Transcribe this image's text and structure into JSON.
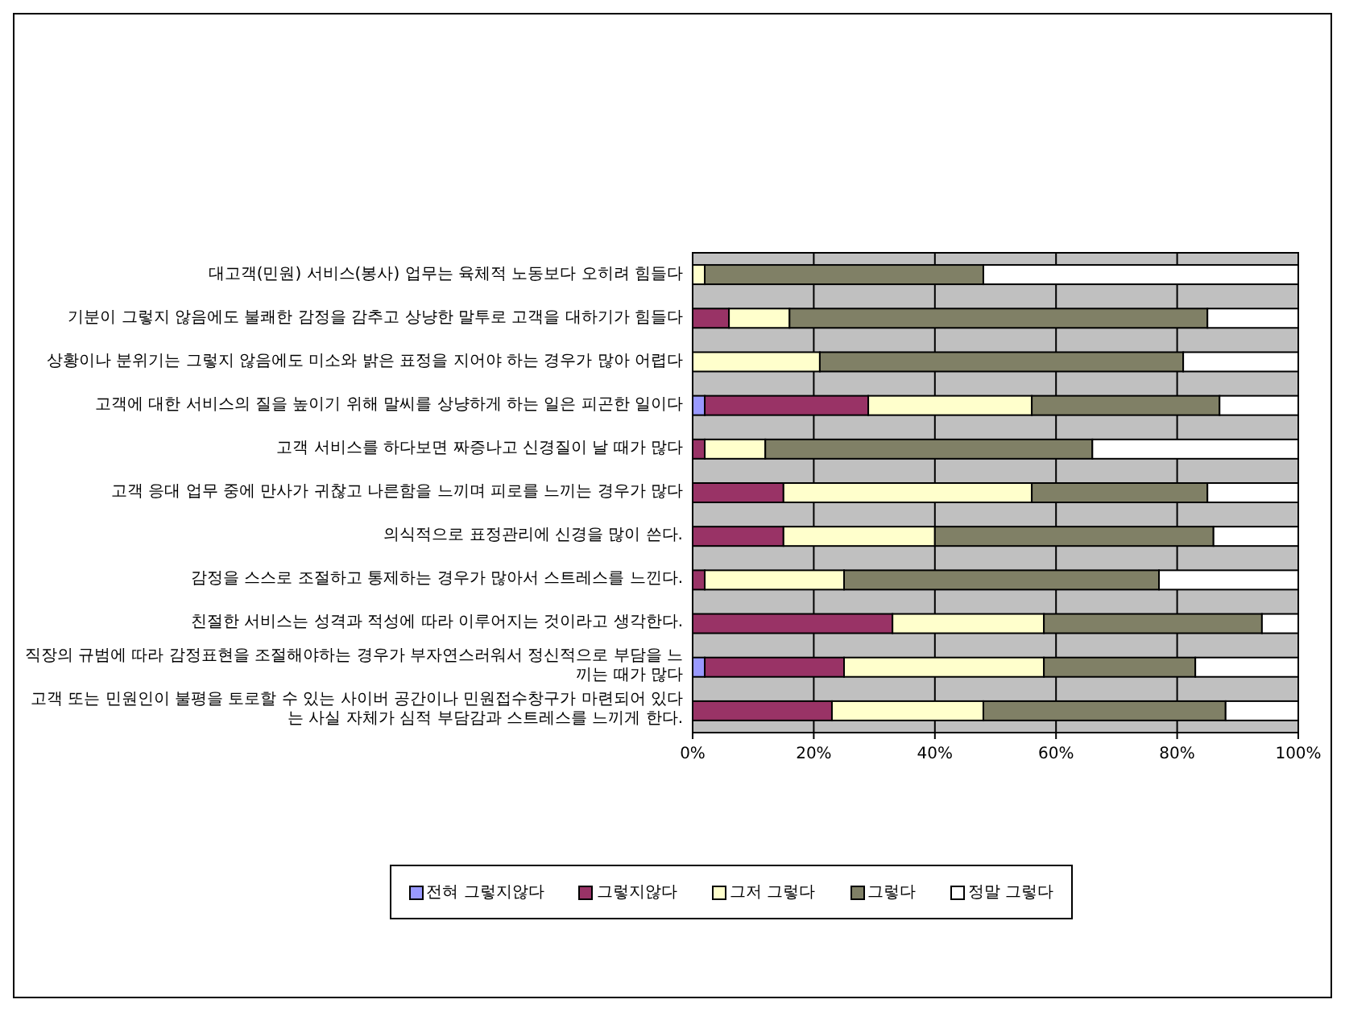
{
  "chart_data": {
    "type": "bar",
    "orientation": "horizontal",
    "stacked": true,
    "categories": [
      "대고객(민원) 서비스(봉사) 업무는 육체적 노동보다 오히려 힘들다",
      "기분이 그렇지 않음에도 불쾌한 감정을 감추고 상냥한 말투로 고객을 대하기가 힘들다",
      "상황이나 분위기는 그렇지 않음에도 미소와 밝은 표정을 지어야 하는 경우가 많아 어렵다",
      "고객에 대한 서비스의 질을 높이기 위해 말씨를 상냥하게 하는 일은 피곤한 일이다",
      "고객 서비스를 하다보면 짜증나고 신경질이 날 때가 많다",
      "고객 응대 업무 중에 만사가 귀찮고 나른함을 느끼며 피로를 느끼는 경우가 많다",
      "의식적으로 표정관리에 신경을 많이 쓴다.",
      "감정을 스스로 조절하고 통제하는 경우가 많아서 스트레스를 느낀다.",
      "친절한 서비스는 성격과 적성에 따라 이루어지는 것이라고 생각한다.",
      "직장의 규범에 따라 감정표현을 조절해야하는 경우가 부자연스러워서 정신적으로 부담을 느끼는 때가 많다",
      "고객 또는 민원인이 불평을 토로할 수 있는 사이버 공간이나 민원접수창구가 마련되어 있다는 사실 자체가 심적 부담감과 스트레스를 느끼게 한다."
    ],
    "series": [
      {
        "name": "전혀 그렇지않다",
        "color": "#9999ff",
        "values": [
          0,
          0,
          0,
          2,
          0,
          0,
          0,
          0,
          0,
          2,
          0
        ]
      },
      {
        "name": "그렇지않다",
        "color": "#993366",
        "values": [
          0,
          6,
          0,
          27,
          2,
          15,
          15,
          2,
          33,
          23,
          23
        ]
      },
      {
        "name": "그저 그렇다",
        "color": "#ffffcc",
        "values": [
          2,
          10,
          21,
          27,
          10,
          41,
          25,
          23,
          25,
          33,
          25
        ]
      },
      {
        "name": "그렇다",
        "color": "#808066",
        "values": [
          46,
          69,
          60,
          31,
          54,
          29,
          46,
          52,
          36,
          25,
          40
        ]
      },
      {
        "name": "정말 그렇다",
        "color": "#ffffff",
        "values": [
          52,
          15,
          19,
          13,
          34,
          15,
          14,
          23,
          6,
          17,
          12
        ]
      }
    ],
    "xlim": [
      0,
      100
    ],
    "xticks": [
      {
        "value": 0,
        "label": "0%"
      },
      {
        "value": 20,
        "label": "20%"
      },
      {
        "value": 40,
        "label": "40%"
      },
      {
        "value": 60,
        "label": "60%"
      },
      {
        "value": 80,
        "label": "80%"
      },
      {
        "value": 100,
        "label": "100%"
      }
    ],
    "grid": "x",
    "legend": "bottom"
  }
}
